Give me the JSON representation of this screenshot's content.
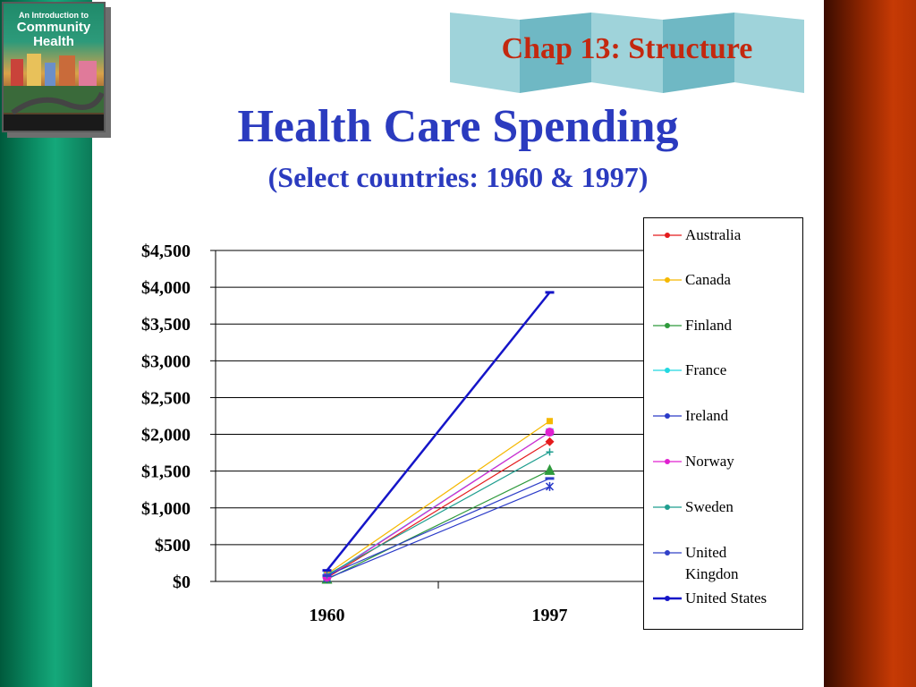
{
  "slide": {
    "chapter": "Chap 13: Structure",
    "title": "Health Care Spending",
    "subtitle": "(Select countries: 1960 & 1997)"
  },
  "book_cover": {
    "line1": "An Introduction to",
    "line2": "Community",
    "line3": "Health"
  },
  "colors": {
    "title": "#2b3bbf",
    "chapter": "#c3280f",
    "banner": "#8fcbd3"
  },
  "chart_data": {
    "type": "line",
    "x": [
      "1960",
      "1997"
    ],
    "ylim": [
      0,
      4500
    ],
    "yticks": [
      0,
      500,
      1000,
      1500,
      2000,
      2500,
      3000,
      3500,
      4000,
      4500
    ],
    "ytick_labels": [
      "$0",
      "$500",
      "$1,000",
      "$1,500",
      "$2,000",
      "$2,500",
      "$3,000",
      "$3,500",
      "$4,000",
      "$4,500"
    ],
    "grid": true,
    "legend_position": "right",
    "series": [
      {
        "name": "Australia",
        "color": "#e41a1c",
        "marker": "diamond",
        "values": [
          50,
          1900
        ]
      },
      {
        "name": "Canada",
        "color": "#f5b800",
        "marker": "square",
        "values": [
          100,
          2180
        ]
      },
      {
        "name": "Finland",
        "color": "#2e9a3c",
        "marker": "triangle",
        "values": [
          30,
          1510
        ]
      },
      {
        "name": "France",
        "color": "#22d8e0",
        "marker": "x",
        "values": [
          70,
          2030
        ]
      },
      {
        "name": "Ireland",
        "color": "#2a3ac8",
        "marker": "star",
        "values": [
          40,
          1290
        ]
      },
      {
        "name": "Norway",
        "color": "#e020d0",
        "marker": "circle",
        "values": [
          60,
          2030
        ]
      },
      {
        "name": "Sweden",
        "color": "#1f9e8f",
        "marker": "plus",
        "values": [
          90,
          1760
        ]
      },
      {
        "name": "United Kingdon",
        "color": "#3040c8",
        "marker": "dash",
        "values": [
          80,
          1400
        ]
      },
      {
        "name": "United States",
        "color": "#1515c8",
        "marker": "dash",
        "values": [
          150,
          3930
        ]
      }
    ]
  }
}
